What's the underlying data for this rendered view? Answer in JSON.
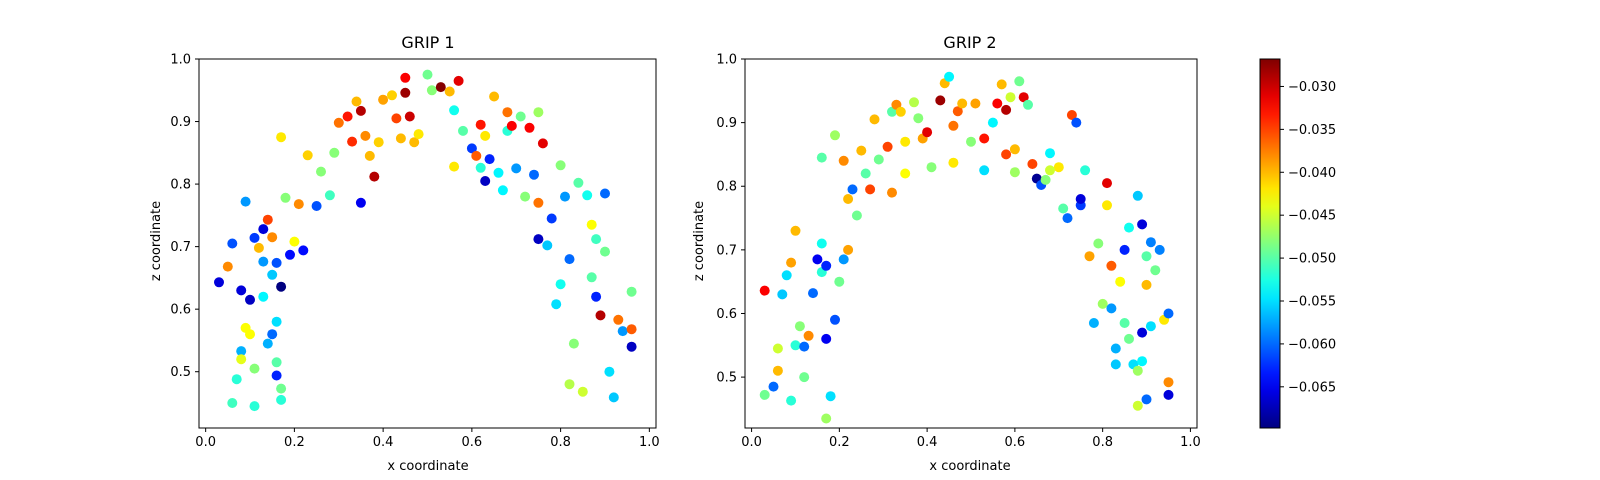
{
  "chart_data": [
    {
      "type": "scatter",
      "title": "GRIP 1",
      "xlabel": "x coordinate",
      "ylabel": "z coordinate",
      "xlim": [
        -0.015,
        1.015
      ],
      "ylim": [
        0.41,
        1.0
      ],
      "xticks": [
        0.0,
        0.2,
        0.4,
        0.6,
        0.8,
        1.0
      ],
      "xtick_labels": [
        "0.0",
        "0.2",
        "0.4",
        "0.6",
        "0.8",
        "1.0"
      ],
      "yticks": [
        0.5,
        0.6,
        0.7,
        0.8,
        0.9,
        1.0
      ],
      "ytick_labels": [
        "0.5",
        "0.6",
        "0.7",
        "0.8",
        "0.9",
        "1.0"
      ],
      "color_by": "value",
      "points": [
        [
          0.03,
          0.643,
          -0.066
        ],
        [
          0.05,
          0.668,
          -0.038
        ],
        [
          0.06,
          0.705,
          -0.061
        ],
        [
          0.08,
          0.63,
          -0.066
        ],
        [
          0.09,
          0.772,
          -0.058
        ],
        [
          0.1,
          0.615,
          -0.067
        ],
        [
          0.11,
          0.714,
          -0.062
        ],
        [
          0.12,
          0.698,
          -0.04
        ],
        [
          0.13,
          0.728,
          -0.066
        ],
        [
          0.14,
          0.743,
          -0.035
        ],
        [
          0.15,
          0.715,
          -0.038
        ],
        [
          0.16,
          0.674,
          -0.061
        ],
        [
          0.17,
          0.636,
          -0.071
        ],
        [
          0.19,
          0.687,
          -0.064
        ],
        [
          0.2,
          0.708,
          -0.043
        ],
        [
          0.22,
          0.694,
          -0.064
        ],
        [
          0.21,
          0.768,
          -0.038
        ],
        [
          0.18,
          0.778,
          -0.048
        ],
        [
          0.17,
          0.875,
          -0.042
        ],
        [
          0.23,
          0.846,
          -0.041
        ],
        [
          0.25,
          0.765,
          -0.061
        ],
        [
          0.26,
          0.82,
          -0.048
        ],
        [
          0.28,
          0.782,
          -0.051
        ],
        [
          0.29,
          0.85,
          -0.048
        ],
        [
          0.3,
          0.898,
          -0.037
        ],
        [
          0.32,
          0.908,
          -0.033
        ],
        [
          0.33,
          0.868,
          -0.034
        ],
        [
          0.34,
          0.932,
          -0.04
        ],
        [
          0.35,
          0.917,
          -0.029
        ],
        [
          0.36,
          0.877,
          -0.038
        ],
        [
          0.37,
          0.845,
          -0.04
        ],
        [
          0.38,
          0.812,
          -0.029
        ],
        [
          0.35,
          0.77,
          -0.065
        ],
        [
          0.39,
          0.867,
          -0.041
        ],
        [
          0.4,
          0.935,
          -0.039
        ],
        [
          0.42,
          0.942,
          -0.041
        ],
        [
          0.43,
          0.905,
          -0.035
        ],
        [
          0.44,
          0.873,
          -0.04
        ],
        [
          0.45,
          0.946,
          -0.028
        ],
        [
          0.46,
          0.908,
          -0.03
        ],
        [
          0.45,
          0.97,
          -0.032
        ],
        [
          0.47,
          0.867,
          -0.04
        ],
        [
          0.48,
          0.88,
          -0.042
        ],
        [
          0.5,
          0.975,
          -0.049
        ],
        [
          0.51,
          0.95,
          -0.048
        ],
        [
          0.53,
          0.955,
          -0.027
        ],
        [
          0.55,
          0.948,
          -0.04
        ],
        [
          0.56,
          0.918,
          -0.053
        ],
        [
          0.57,
          0.965,
          -0.031
        ],
        [
          0.58,
          0.885,
          -0.05
        ],
        [
          0.56,
          0.828,
          -0.042
        ],
        [
          0.6,
          0.857,
          -0.062
        ],
        [
          0.61,
          0.845,
          -0.036
        ],
        [
          0.62,
          0.895,
          -0.033
        ],
        [
          0.63,
          0.877,
          -0.042
        ],
        [
          0.62,
          0.826,
          -0.052
        ],
        [
          0.63,
          0.805,
          -0.067
        ],
        [
          0.64,
          0.84,
          -0.063
        ],
        [
          0.65,
          0.94,
          -0.04
        ],
        [
          0.66,
          0.818,
          -0.054
        ],
        [
          0.67,
          0.79,
          -0.054
        ],
        [
          0.68,
          0.915,
          -0.037
        ],
        [
          0.68,
          0.885,
          -0.052
        ],
        [
          0.69,
          0.893,
          -0.032
        ],
        [
          0.7,
          0.825,
          -0.058
        ],
        [
          0.71,
          0.908,
          -0.049
        ],
        [
          0.72,
          0.78,
          -0.048
        ],
        [
          0.73,
          0.89,
          -0.032
        ],
        [
          0.74,
          0.815,
          -0.06
        ],
        [
          0.75,
          0.915,
          -0.047
        ],
        [
          0.76,
          0.865,
          -0.031
        ],
        [
          0.75,
          0.77,
          -0.037
        ],
        [
          0.75,
          0.712,
          -0.067
        ],
        [
          0.77,
          0.702,
          -0.056
        ],
        [
          0.78,
          0.745,
          -0.062
        ],
        [
          0.79,
          0.608,
          -0.055
        ],
        [
          0.8,
          0.83,
          -0.048
        ],
        [
          0.81,
          0.78,
          -0.058
        ],
        [
          0.82,
          0.68,
          -0.06
        ],
        [
          0.8,
          0.64,
          -0.053
        ],
        [
          0.82,
          0.48,
          -0.046
        ],
        [
          0.83,
          0.545,
          -0.048
        ],
        [
          0.84,
          0.802,
          -0.05
        ],
        [
          0.85,
          0.468,
          -0.045
        ],
        [
          0.86,
          0.782,
          -0.053
        ],
        [
          0.87,
          0.735,
          -0.043
        ],
        [
          0.88,
          0.712,
          -0.051
        ],
        [
          0.87,
          0.651,
          -0.05
        ],
        [
          0.88,
          0.62,
          -0.063
        ],
        [
          0.89,
          0.59,
          -0.029
        ],
        [
          0.9,
          0.692,
          -0.049
        ],
        [
          0.9,
          0.785,
          -0.06
        ],
        [
          0.91,
          0.5,
          -0.055
        ],
        [
          0.92,
          0.459,
          -0.056
        ],
        [
          0.93,
          0.583,
          -0.037
        ],
        [
          0.94,
          0.565,
          -0.058
        ],
        [
          0.96,
          0.568,
          -0.036
        ],
        [
          0.96,
          0.54,
          -0.067
        ],
        [
          0.96,
          0.628,
          -0.049
        ],
        [
          0.06,
          0.45,
          -0.051
        ],
        [
          0.07,
          0.488,
          -0.052
        ],
        [
          0.08,
          0.533,
          -0.057
        ],
        [
          0.08,
          0.52,
          -0.044
        ],
        [
          0.09,
          0.57,
          -0.043
        ],
        [
          0.1,
          0.56,
          -0.043
        ],
        [
          0.11,
          0.505,
          -0.048
        ],
        [
          0.11,
          0.445,
          -0.052
        ],
        [
          0.13,
          0.62,
          -0.054
        ],
        [
          0.14,
          0.545,
          -0.057
        ],
        [
          0.15,
          0.56,
          -0.06
        ],
        [
          0.16,
          0.58,
          -0.055
        ],
        [
          0.16,
          0.515,
          -0.05
        ],
        [
          0.16,
          0.494,
          -0.063
        ],
        [
          0.17,
          0.473,
          -0.049
        ],
        [
          0.17,
          0.455,
          -0.052
        ],
        [
          0.13,
          0.676,
          -0.058
        ],
        [
          0.15,
          0.655,
          -0.056
        ]
      ]
    },
    {
      "type": "scatter",
      "title": "GRIP 2",
      "xlabel": "x coordinate",
      "ylabel": "z coordinate",
      "xlim": [
        -0.015,
        1.015
      ],
      "ylim": [
        0.42,
        1.0
      ],
      "xticks": [
        0.0,
        0.2,
        0.4,
        0.6,
        0.8,
        1.0
      ],
      "xtick_labels": [
        "0.0",
        "0.2",
        "0.4",
        "0.6",
        "0.8",
        "1.0"
      ],
      "yticks": [
        0.5,
        0.6,
        0.7,
        0.8,
        0.9,
        1.0
      ],
      "ytick_labels": [
        "0.5",
        "0.6",
        "0.7",
        "0.8",
        "0.9",
        "1.0"
      ],
      "color_by": "value",
      "points": [
        [
          0.03,
          0.472,
          -0.049
        ],
        [
          0.03,
          0.636,
          -0.032
        ],
        [
          0.05,
          0.485,
          -0.06
        ],
        [
          0.06,
          0.51,
          -0.04
        ],
        [
          0.06,
          0.545,
          -0.045
        ],
        [
          0.07,
          0.63,
          -0.056
        ],
        [
          0.08,
          0.66,
          -0.055
        ],
        [
          0.09,
          0.68,
          -0.039
        ],
        [
          0.09,
          0.463,
          -0.052
        ],
        [
          0.1,
          0.55,
          -0.052
        ],
        [
          0.1,
          0.73,
          -0.04
        ],
        [
          0.11,
          0.58,
          -0.048
        ],
        [
          0.12,
          0.548,
          -0.06
        ],
        [
          0.12,
          0.5,
          -0.049
        ],
        [
          0.13,
          0.565,
          -0.038
        ],
        [
          0.14,
          0.632,
          -0.06
        ],
        [
          0.15,
          0.685,
          -0.065
        ],
        [
          0.16,
          0.71,
          -0.053
        ],
        [
          0.16,
          0.665,
          -0.052
        ],
        [
          0.17,
          0.675,
          -0.063
        ],
        [
          0.17,
          0.56,
          -0.065
        ],
        [
          0.17,
          0.435,
          -0.047
        ],
        [
          0.18,
          0.47,
          -0.055
        ],
        [
          0.19,
          0.59,
          -0.061
        ],
        [
          0.2,
          0.65,
          -0.049
        ],
        [
          0.21,
          0.685,
          -0.058
        ],
        [
          0.22,
          0.7,
          -0.039
        ],
        [
          0.22,
          0.78,
          -0.04
        ],
        [
          0.23,
          0.795,
          -0.06
        ],
        [
          0.24,
          0.754,
          -0.049
        ],
        [
          0.25,
          0.856,
          -0.04
        ],
        [
          0.26,
          0.82,
          -0.05
        ],
        [
          0.27,
          0.795,
          -0.035
        ],
        [
          0.28,
          0.905,
          -0.04
        ],
        [
          0.29,
          0.842,
          -0.049
        ],
        [
          0.31,
          0.862,
          -0.035
        ],
        [
          0.32,
          0.917,
          -0.05
        ],
        [
          0.33,
          0.928,
          -0.038
        ],
        [
          0.34,
          0.917,
          -0.041
        ],
        [
          0.35,
          0.87,
          -0.042
        ],
        [
          0.35,
          0.82,
          -0.043
        ],
        [
          0.37,
          0.932,
          -0.046
        ],
        [
          0.38,
          0.907,
          -0.048
        ],
        [
          0.39,
          0.875,
          -0.039
        ],
        [
          0.4,
          0.885,
          -0.031
        ],
        [
          0.41,
          0.83,
          -0.048
        ],
        [
          0.43,
          0.935,
          -0.028
        ],
        [
          0.44,
          0.962,
          -0.04
        ],
        [
          0.45,
          0.972,
          -0.054
        ],
        [
          0.46,
          0.837,
          -0.042
        ],
        [
          0.46,
          0.895,
          -0.037
        ],
        [
          0.47,
          0.918,
          -0.036
        ],
        [
          0.48,
          0.93,
          -0.04
        ],
        [
          0.5,
          0.87,
          -0.048
        ],
        [
          0.51,
          0.93,
          -0.039
        ],
        [
          0.53,
          0.875,
          -0.033
        ],
        [
          0.53,
          0.825,
          -0.055
        ],
        [
          0.55,
          0.9,
          -0.054
        ],
        [
          0.56,
          0.93,
          -0.032
        ],
        [
          0.57,
          0.96,
          -0.04
        ],
        [
          0.58,
          0.92,
          -0.029
        ],
        [
          0.59,
          0.94,
          -0.045
        ],
        [
          0.6,
          0.858,
          -0.04
        ],
        [
          0.6,
          0.822,
          -0.047
        ],
        [
          0.61,
          0.965,
          -0.049
        ],
        [
          0.62,
          0.94,
          -0.031
        ],
        [
          0.63,
          0.928,
          -0.05
        ],
        [
          0.64,
          0.835,
          -0.035
        ],
        [
          0.65,
          0.812,
          -0.069
        ],
        [
          0.66,
          0.802,
          -0.061
        ],
        [
          0.67,
          0.81,
          -0.048
        ],
        [
          0.68,
          0.852,
          -0.054
        ],
        [
          0.7,
          0.83,
          -0.042
        ],
        [
          0.71,
          0.765,
          -0.05
        ],
        [
          0.72,
          0.75,
          -0.06
        ],
        [
          0.73,
          0.912,
          -0.035
        ],
        [
          0.74,
          0.9,
          -0.061
        ],
        [
          0.75,
          0.77,
          -0.062
        ],
        [
          0.75,
          0.78,
          -0.066
        ],
        [
          0.76,
          0.825,
          -0.052
        ],
        [
          0.77,
          0.69,
          -0.039
        ],
        [
          0.78,
          0.585,
          -0.057
        ],
        [
          0.79,
          0.71,
          -0.048
        ],
        [
          0.8,
          0.615,
          -0.047
        ],
        [
          0.81,
          0.77,
          -0.042
        ],
        [
          0.81,
          0.805,
          -0.031
        ],
        [
          0.82,
          0.675,
          -0.036
        ],
        [
          0.82,
          0.608,
          -0.058
        ],
        [
          0.83,
          0.545,
          -0.057
        ],
        [
          0.83,
          0.52,
          -0.056
        ],
        [
          0.84,
          0.65,
          -0.043
        ],
        [
          0.85,
          0.7,
          -0.063
        ],
        [
          0.85,
          0.585,
          -0.05
        ],
        [
          0.86,
          0.735,
          -0.053
        ],
        [
          0.86,
          0.56,
          -0.049
        ],
        [
          0.87,
          0.52,
          -0.055
        ],
        [
          0.88,
          0.785,
          -0.056
        ],
        [
          0.89,
          0.74,
          -0.066
        ],
        [
          0.89,
          0.57,
          -0.066
        ],
        [
          0.9,
          0.69,
          -0.05
        ],
        [
          0.9,
          0.645,
          -0.04
        ],
        [
          0.91,
          0.712,
          -0.059
        ],
        [
          0.91,
          0.58,
          -0.055
        ],
        [
          0.92,
          0.668,
          -0.049
        ],
        [
          0.93,
          0.7,
          -0.059
        ],
        [
          0.94,
          0.59,
          -0.042
        ],
        [
          0.95,
          0.6,
          -0.06
        ],
        [
          0.95,
          0.492,
          -0.038
        ],
        [
          0.95,
          0.472,
          -0.066
        ],
        [
          0.88,
          0.455,
          -0.045
        ],
        [
          0.9,
          0.465,
          -0.06
        ],
        [
          0.88,
          0.51,
          -0.047
        ],
        [
          0.89,
          0.525,
          -0.054
        ],
        [
          0.19,
          0.88,
          -0.047
        ],
        [
          0.16,
          0.845,
          -0.05
        ],
        [
          0.21,
          0.84,
          -0.038
        ],
        [
          0.32,
          0.79,
          -0.038
        ],
        [
          0.58,
          0.85,
          -0.035
        ],
        [
          0.68,
          0.825,
          -0.045
        ]
      ]
    }
  ],
  "colorbar": {
    "cmap": "jet",
    "vmin": -0.0698,
    "vmax": -0.0268,
    "ticks": [
      -0.065,
      -0.06,
      -0.055,
      -0.05,
      -0.045,
      -0.04,
      -0.035,
      -0.03
    ],
    "tick_labels": [
      "−0.065",
      "−0.060",
      "−0.055",
      "−0.050",
      "−0.045",
      "−0.040",
      "−0.035",
      "−0.030"
    ]
  }
}
